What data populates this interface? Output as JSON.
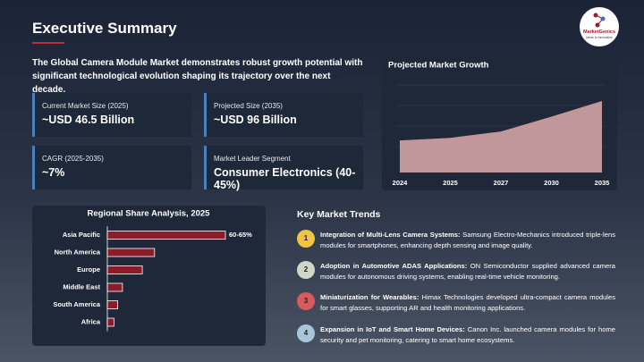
{
  "header": {
    "title": "Executive Summary",
    "logo": {
      "name": "MarketGenics",
      "tagline": "Ideas to Innovation"
    }
  },
  "summary": "The Global Camera Module Market demonstrates robust growth potential with significant technological evolution shaping its trajectory over the next decade.",
  "stats": [
    {
      "label": "Current Market Size (2025)",
      "value": "~USD 46.5 Billion"
    },
    {
      "label": "Projected Size (2035)",
      "value": "~USD 96 Billion"
    },
    {
      "label": "CAGR (2025-2035)",
      "value": "~7%"
    },
    {
      "label": "Market Leader Segment",
      "value": "Consumer  Electronics (40-45%)"
    }
  ],
  "chart_data": [
    {
      "type": "area",
      "title": "Projected Market Growth",
      "categories": [
        "2024",
        "2025",
        "2027",
        "2030",
        "2035"
      ],
      "values": [
        43,
        46.5,
        55,
        75,
        96
      ],
      "color": "#d4a3a6"
    },
    {
      "type": "barh",
      "title": "Regional Share Analysis, 2025",
      "categories": [
        "Asia Pacific",
        "North America",
        "Europe",
        "Middle East",
        "South America",
        "Africa"
      ],
      "values": [
        62.5,
        25,
        18.5,
        8,
        5.5,
        3.5
      ],
      "value_labels": [
        "60-65%",
        null,
        null,
        null,
        null,
        null
      ],
      "color": "#8b1c2a"
    }
  ],
  "trends": {
    "title": "Key Market Trends",
    "items": [
      {
        "number": "1",
        "heading": "Integration of Multi-Lens Camera Systems:",
        "text": "Samsung Electro-Mechanics introduced triple-lens modules for smartphones, enhancing depth sensing and image quality."
      },
      {
        "number": "2",
        "heading": "Adoption in Automotive ADAS Applications:",
        "text": "ON Semiconductor supplied advanced camera modules for autonomous driving systems, enabling real-time vehicle monitoring."
      },
      {
        "number": "3",
        "heading": "Miniaturization for Wearables:",
        "text": "Himax Technologies developed ultra-compact camera modules for smart glasses, supporting AR and health monitoring  applications."
      },
      {
        "number": "4",
        "heading": "Expansion in IoT and Smart Home Devices:",
        "text": "Canon Inc. launched camera modules for home security and pet monitoring, catering to smart home ecosystems."
      }
    ]
  }
}
